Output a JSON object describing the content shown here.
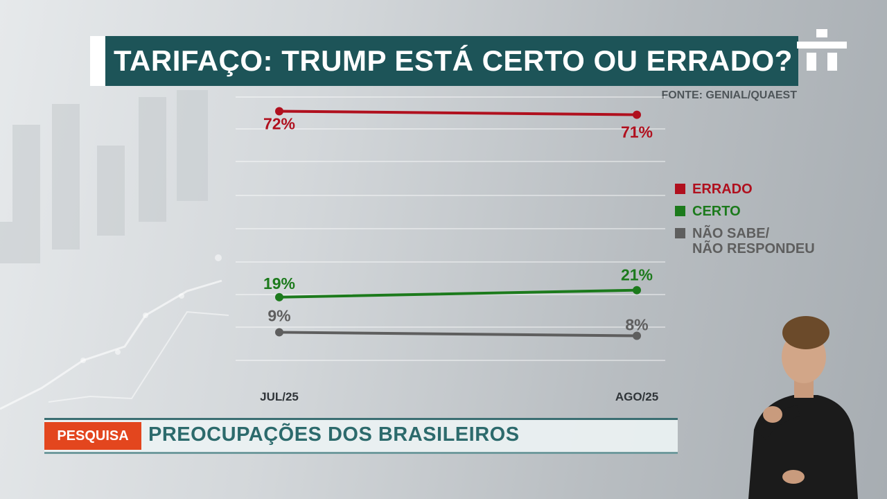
{
  "title": "TARIFAÇO: TRUMP ESTÁ CERTO OU ERRADO?",
  "source": "FONTE: GENIAL/QUAEST",
  "lower_third": {
    "tag": "PESQUISA",
    "headline": "PREOCUPAÇÕES DOS BRASILEIROS"
  },
  "colors": {
    "errado": "#b0101e",
    "certo": "#1c7a1c",
    "nao_sabe": "#5e5e5e",
    "title_bg": "#1d5458",
    "tag_bg": "#e3461e"
  },
  "chart_data": {
    "type": "line",
    "title": "TARIFAÇO: TRUMP ESTÁ CERTO OU ERRADO?",
    "categories": [
      "JUL/25",
      "AGO/25"
    ],
    "series": [
      {
        "name": "ERRADO",
        "values": [
          72,
          71
        ],
        "labels": [
          "72%",
          "71%"
        ],
        "color": "#b0101e"
      },
      {
        "name": "CERTO",
        "values": [
          19,
          21
        ],
        "labels": [
          "19%",
          "21%"
        ],
        "color": "#1c7a1c"
      },
      {
        "name": "NÃO SABE/\nNÃO RESPONDEU",
        "values": [
          9,
          8
        ],
        "labels": [
          "9%",
          "8%"
        ],
        "color": "#5e5e5e"
      }
    ],
    "ylim": [
      0,
      80
    ],
    "grid": true,
    "legend": "right"
  }
}
